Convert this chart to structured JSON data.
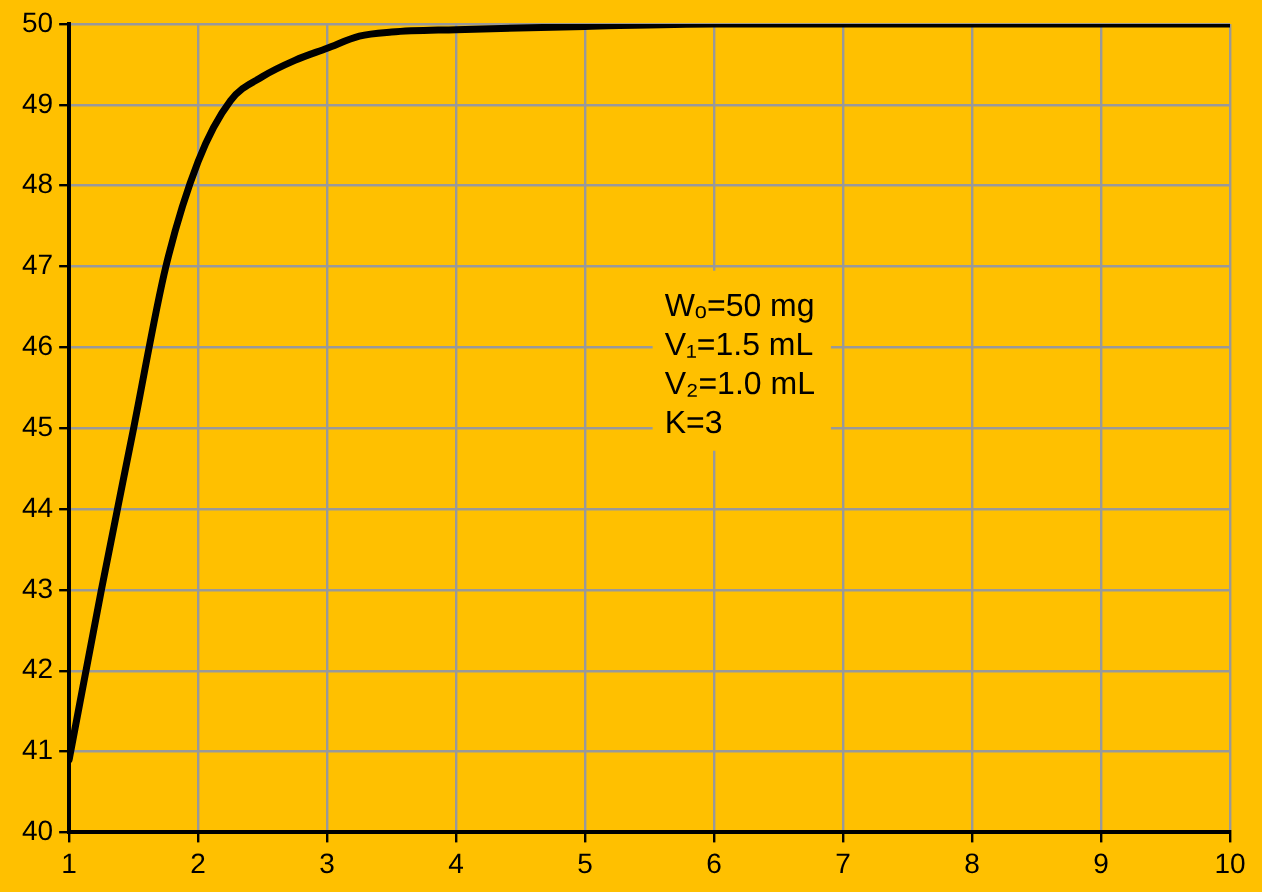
{
  "chart_data": {
    "type": "line",
    "x": [
      1,
      1.25,
      1.5,
      1.75,
      2,
      2.25,
      2.5,
      2.75,
      3,
      3.25,
      3.5,
      4,
      5,
      6,
      7,
      8,
      9,
      10
    ],
    "series": [
      {
        "color": "#000000",
        "values": [
          40.9,
          43,
          45,
          47,
          48.3,
          49.05,
          49.35,
          49.55,
          49.7,
          49.85,
          49.9,
          49.93,
          49.97,
          50,
          50,
          50,
          50,
          50
        ]
      }
    ],
    "xlim": [
      1,
      10
    ],
    "xticks": [
      1,
      2,
      3,
      4,
      5,
      6,
      7,
      8,
      9,
      10
    ],
    "ylim": [
      40,
      50
    ],
    "yticks": [
      40,
      41,
      42,
      43,
      44,
      45,
      46,
      47,
      48,
      49,
      50
    ],
    "grid": true,
    "legend": false,
    "marker": "none",
    "line_style": "solid",
    "annotations": [
      "Wₒ=50 mg",
      "V₁=1.5 mL",
      "V₂=1.0 mL",
      "K=3"
    ]
  }
}
